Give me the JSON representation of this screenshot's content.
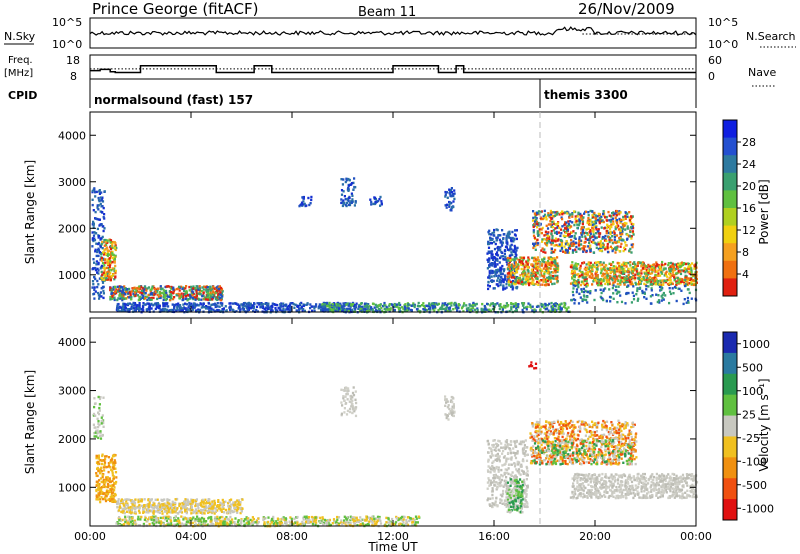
{
  "header": {
    "station": "Prince George (fitACF)",
    "beam": "Beam 11",
    "date": "26/Nov/2009"
  },
  "top_panels": {
    "nsky_label": "N.Sky",
    "nsky_ticks": [
      "10^5",
      "10^0"
    ],
    "nsearch_label": "N.Search",
    "nsearch_ticks": [
      "10^5",
      "10^0"
    ],
    "freq_label_1": "Freq.",
    "freq_label_2": "[MHz]",
    "freq_ticks": [
      "18",
      "8"
    ],
    "nave_label": "Nave",
    "nave_ticks": [
      "60",
      "0"
    ],
    "cpid_label": "CPID",
    "cpid_1": "normalsound (fast) 157",
    "cpid_2": "themis 3300"
  },
  "chart_data": [
    {
      "type": "line",
      "name": "frequency",
      "x_unit": "hours UT",
      "ylim": [
        8,
        18
      ],
      "steps": [
        [
          0,
          11.5
        ],
        [
          0.4,
          12
        ],
        [
          0.8,
          11
        ],
        [
          1.0,
          10.7
        ],
        [
          2.0,
          13.5
        ],
        [
          5.0,
          10.7
        ],
        [
          6.5,
          13.5
        ],
        [
          7.2,
          10.7
        ],
        [
          12.0,
          13.5
        ],
        [
          13.8,
          10.7
        ],
        [
          14.5,
          13.5
        ],
        [
          14.8,
          10.7
        ],
        [
          24,
          10.7
        ]
      ],
      "nave_level": 12.2
    },
    {
      "type": "heatmap",
      "name": "power",
      "title": "",
      "xlabel": "",
      "ylabel": "Slant Range [km]",
      "xlim": [
        0,
        24
      ],
      "ylim": [
        200,
        4500
      ],
      "x_ticks": [
        "00:00",
        "04:00",
        "08:00",
        "12:00",
        "16:00",
        "20:00",
        "00:00"
      ],
      "y_ticks": [
        "1000",
        "2000",
        "3000",
        "4000"
      ],
      "colorbar_label": "Power [dB]",
      "colorbar_ticks": [
        "4",
        "8",
        "12",
        "16",
        "20",
        "24",
        "28"
      ],
      "colorbar_colors": [
        "#0f1fe0",
        "#2450d0",
        "#2e7aa0",
        "#3aa070",
        "#60c040",
        "#b0d020",
        "#f0d010",
        "#f5a020",
        "#f07010",
        "#e02010"
      ]
    },
    {
      "type": "heatmap",
      "name": "velocity",
      "title": "",
      "xlabel": "Time UT",
      "ylabel": "Slant Range [km]",
      "xlim": [
        0,
        24
      ],
      "ylim": [
        200,
        4500
      ],
      "x_ticks": [
        "00:00",
        "04:00",
        "08:00",
        "12:00",
        "16:00",
        "20:00",
        "00:00"
      ],
      "y_ticks": [
        "1000",
        "2000",
        "3000",
        "4000"
      ],
      "colorbar_label": "Velocity [m s⁻¹]",
      "colorbar_ticks": [
        "1000",
        "500",
        "100",
        "25",
        "-25",
        "-100",
        "-500",
        "-1000"
      ],
      "colorbar_colors": [
        "#1a2ab0",
        "#2a7aa0",
        "#2a9a50",
        "#60c040",
        "#c8c8c0",
        "#f0c020",
        "#f09010",
        "#f05010",
        "#e01010"
      ]
    }
  ],
  "regions": {
    "power": [
      {
        "x": 0.05,
        "y0": 500,
        "y1": 2900,
        "c": "blue"
      },
      {
        "x": 0.6,
        "y0": 900,
        "y1": 1800,
        "c": "warm"
      },
      {
        "x": 1.0,
        "y0": 300,
        "y1": 700,
        "c": "mix"
      },
      {
        "x": 3.0,
        "y0": 500,
        "y1": 800,
        "c": "warm"
      },
      {
        "x": 5.5,
        "y0": 500,
        "y1": 700,
        "c": "warm"
      },
      {
        "x": 7.0,
        "y0": 250,
        "y1": 450,
        "c": "blue"
      },
      {
        "x": 10.0,
        "y0": 2500,
        "y1": 3100,
        "c": "blue"
      },
      {
        "x": 14.0,
        "y0": 250,
        "y1": 450,
        "c": "blue"
      },
      {
        "x": 16.0,
        "y0": 600,
        "y1": 2000,
        "c": "blue"
      },
      {
        "x": 17.0,
        "y0": 800,
        "y1": 1400,
        "c": "warm"
      },
      {
        "x": 18.5,
        "y0": 1500,
        "y1": 2400,
        "c": "warm"
      },
      {
        "x": 21.0,
        "y0": 800,
        "y1": 1300,
        "c": "warm"
      },
      {
        "x": 22.0,
        "y0": 1600,
        "y1": 2300,
        "c": "warm"
      }
    ]
  }
}
